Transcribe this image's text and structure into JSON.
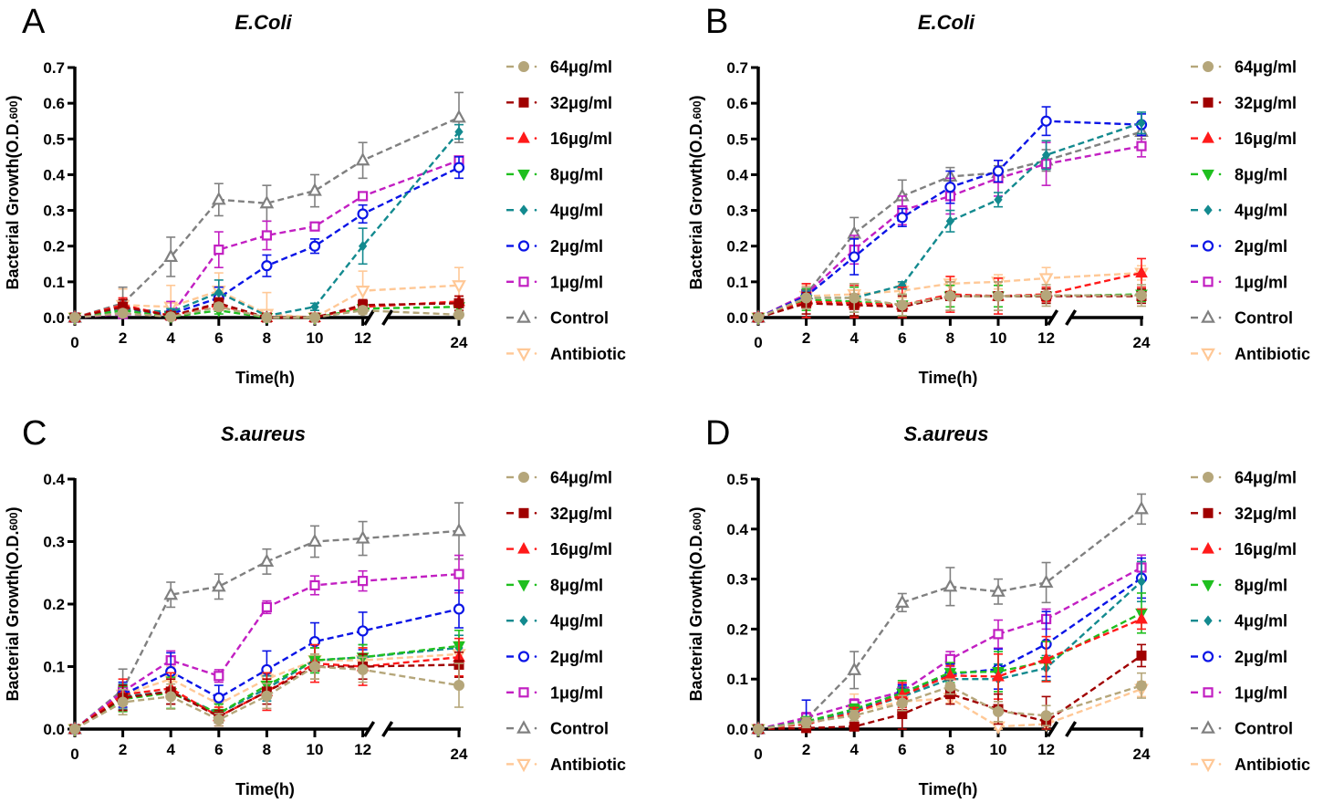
{
  "figure": {
    "y_axis_label": "Bacterial Growth(O.D.",
    "y_axis_label_sub": "600",
    "y_axis_label_close": ")",
    "x_axis_label": "Time(h)"
  },
  "legend": [
    {
      "name": "64μg/ml",
      "color": "#b5a67a",
      "marker": "circle-filled"
    },
    {
      "name": "32μg/ml",
      "color": "#a00000",
      "marker": "square-filled"
    },
    {
      "name": "16μg/ml",
      "color": "#ff1a1a",
      "marker": "triangle-up-filled"
    },
    {
      "name": "8μg/ml",
      "color": "#1fbf1f",
      "marker": "triangle-down-filled"
    },
    {
      "name": "4μg/ml",
      "color": "#138a8f",
      "marker": "diamond-filled"
    },
    {
      "name": "2μg/ml",
      "color": "#0a14e6",
      "marker": "circle-open"
    },
    {
      "name": "1μg/ml",
      "color": "#c21fc2",
      "marker": "square-open"
    },
    {
      "name": "Control",
      "color": "#808080",
      "marker": "triangle-up-open"
    },
    {
      "name": "Antibiotic",
      "color": "#ffc896",
      "marker": "triangle-down-open"
    }
  ],
  "chart_data": [
    {
      "panel": "A",
      "type": "line",
      "title": "E.Coli",
      "xlabel": "Time(h)",
      "ylabel": "Bacterial Growth(O.D.600)",
      "x": [
        0,
        2,
        4,
        6,
        8,
        10,
        12,
        24
      ],
      "x_tick_labels": [
        "0",
        "2",
        "4",
        "6",
        "8",
        "10",
        "12",
        "24"
      ],
      "x_axis_break": "between 12 and 24",
      "ylim": [
        0,
        0.7
      ],
      "y_ticks": [
        "0.0",
        "0.1",
        "0.2",
        "0.3",
        "0.4",
        "0.5",
        "0.6",
        "0.7"
      ],
      "legend_position": "right",
      "series": [
        {
          "name": "64μg/ml",
          "values": [
            0,
            0.012,
            0.002,
            0.03,
            0.0,
            0.0,
            0.02,
            0.008
          ],
          "errors": [
            0,
            0.01,
            0.005,
            0.01,
            0.005,
            0.005,
            0.01,
            0.005
          ]
        },
        {
          "name": "32μg/ml",
          "values": [
            0,
            0.03,
            0.005,
            0.04,
            0.0,
            0.0,
            0.035,
            0.04
          ],
          "errors": [
            0,
            0.02,
            0.005,
            0.015,
            0.005,
            0.005,
            0.015,
            0.02
          ]
        },
        {
          "name": "16μg/ml",
          "values": [
            0,
            0.035,
            0.005,
            0.035,
            0.0,
            0.0,
            0.03,
            0.045
          ],
          "errors": [
            0,
            0.02,
            0.005,
            0.015,
            0.005,
            0.005,
            0.01,
            0.015
          ]
        },
        {
          "name": "8μg/ml",
          "values": [
            0,
            0.02,
            0.002,
            0.02,
            0.0,
            0.0,
            0.025,
            0.03
          ],
          "errors": [
            0,
            0.01,
            0.005,
            0.01,
            0.005,
            0.005,
            0.01,
            0.01
          ]
        },
        {
          "name": "4μg/ml",
          "values": [
            0,
            0.025,
            0.015,
            0.07,
            0.005,
            0.03,
            0.2,
            0.52
          ],
          "errors": [
            0,
            0.01,
            0.01,
            0.035,
            0.005,
            0.01,
            0.05,
            0.02
          ]
        },
        {
          "name": "2μg/ml",
          "values": [
            0,
            0.02,
            0.01,
            0.055,
            0.145,
            0.2,
            0.29,
            0.42
          ],
          "errors": [
            0,
            0.01,
            0.01,
            0.03,
            0.03,
            0.02,
            0.025,
            0.03
          ]
        },
        {
          "name": "1μg/ml",
          "values": [
            0,
            0.01,
            0.005,
            0.19,
            0.23,
            0.255,
            0.34,
            0.44
          ],
          "errors": [
            0,
            0.01,
            0.04,
            0.05,
            0.04,
            0.01,
            0.01,
            0.01
          ]
        },
        {
          "name": "Control",
          "values": [
            0,
            0.04,
            0.17,
            0.33,
            0.32,
            0.355,
            0.44,
            0.56
          ],
          "errors": [
            0,
            0.045,
            0.055,
            0.045,
            0.05,
            0.045,
            0.05,
            0.07
          ]
        },
        {
          "name": "Antibiotic",
          "values": [
            0,
            0.035,
            0.03,
            0.075,
            0.01,
            0.0,
            0.075,
            0.09
          ],
          "errors": [
            0,
            0.045,
            0.06,
            0.05,
            0.06,
            0.005,
            0.055,
            0.05
          ]
        }
      ]
    },
    {
      "panel": "B",
      "type": "line",
      "title": "E.Coli",
      "xlabel": "Time(h)",
      "ylabel": "Bacterial Growth(O.D.600)",
      "x": [
        0,
        2,
        4,
        6,
        8,
        10,
        12,
        24
      ],
      "x_tick_labels": [
        "0",
        "2",
        "4",
        "6",
        "8",
        "10",
        "12",
        "24"
      ],
      "x_axis_break": "between 12 and 24",
      "ylim": [
        0,
        0.7
      ],
      "y_ticks": [
        "0.0",
        "0.1",
        "0.2",
        "0.3",
        "0.4",
        "0.5",
        "0.6",
        "0.7"
      ],
      "legend_position": "right",
      "series": [
        {
          "name": "64μg/ml",
          "values": [
            0,
            0.055,
            0.055,
            0.035,
            0.06,
            0.06,
            0.062,
            0.062
          ],
          "errors": [
            0,
            0.03,
            0.04,
            0.03,
            0.04,
            0.04,
            0.03,
            0.03
          ]
        },
        {
          "name": "32μg/ml",
          "values": [
            0,
            0.04,
            0.035,
            0.03,
            0.06,
            0.06,
            0.06,
            0.06
          ],
          "errors": [
            0,
            0.03,
            0.03,
            0.03,
            0.04,
            0.04,
            0.02,
            0.02
          ]
        },
        {
          "name": "16μg/ml",
          "values": [
            0,
            0.045,
            0.04,
            0.035,
            0.065,
            0.06,
            0.065,
            0.125
          ],
          "errors": [
            0,
            0.05,
            0.05,
            0.05,
            0.05,
            0.05,
            0.02,
            0.04
          ]
        },
        {
          "name": "8μg/ml",
          "values": [
            0,
            0.05,
            0.045,
            0.035,
            0.06,
            0.06,
            0.06,
            0.065
          ],
          "errors": [
            0,
            0.03,
            0.04,
            0.03,
            0.03,
            0.03,
            0.02,
            0.02
          ]
        },
        {
          "name": "4μg/ml",
          "values": [
            0,
            0.055,
            0.055,
            0.09,
            0.27,
            0.33,
            0.455,
            0.545
          ],
          "errors": [
            0,
            0.02,
            0.04,
            0.01,
            0.03,
            0.02,
            0.04,
            0.03
          ]
        },
        {
          "name": "2μg/ml",
          "values": [
            0,
            0.06,
            0.17,
            0.28,
            0.365,
            0.41,
            0.55,
            0.54
          ],
          "errors": [
            0,
            0.02,
            0.05,
            0.025,
            0.045,
            0.03,
            0.04,
            0.03
          ]
        },
        {
          "name": "1μg/ml",
          "values": [
            0,
            0.065,
            0.19,
            0.3,
            0.34,
            0.39,
            0.43,
            0.48
          ],
          "errors": [
            0,
            0.02,
            0.04,
            0.04,
            0.05,
            0.05,
            0.06,
            0.03
          ]
        },
        {
          "name": "Control",
          "values": [
            0,
            0.065,
            0.235,
            0.34,
            0.395,
            0.405,
            0.44,
            0.52
          ],
          "errors": [
            0,
            0.03,
            0.045,
            0.045,
            0.025,
            0.02,
            0.03,
            0.02
          ]
        },
        {
          "name": "Antibiotic",
          "values": [
            0,
            0.06,
            0.065,
            0.075,
            0.095,
            0.1,
            0.11,
            0.125
          ],
          "errors": [
            0,
            0.03,
            0.03,
            0.02,
            0.02,
            0.02,
            0.03,
            0.02
          ]
        }
      ]
    },
    {
      "panel": "C",
      "type": "line",
      "title": "S.aureus",
      "xlabel": "Time(h)",
      "ylabel": "Bacterial Growth(O.D.600)",
      "x": [
        0,
        2,
        4,
        6,
        8,
        10,
        12,
        24
      ],
      "x_tick_labels": [
        "0",
        "2",
        "4",
        "6",
        "8",
        "10",
        "12",
        "24"
      ],
      "x_axis_break": "between 12 and 24",
      "ylim": [
        0,
        0.4
      ],
      "y_ticks": [
        "0.0",
        "0.1",
        "0.2",
        "0.3",
        "0.4"
      ],
      "legend_position": "right",
      "series": [
        {
          "name": "64μg/ml",
          "values": [
            0,
            0.043,
            0.052,
            0.015,
            0.053,
            0.1,
            0.095,
            0.07
          ],
          "errors": [
            0,
            0.02,
            0.02,
            0.01,
            0.02,
            0.02,
            0.02,
            0.035
          ]
        },
        {
          "name": "32μg/ml",
          "values": [
            0,
            0.05,
            0.06,
            0.02,
            0.06,
            0.1,
            0.1,
            0.103
          ],
          "errors": [
            0,
            0.02,
            0.02,
            0.01,
            0.02,
            0.02,
            0.02,
            0.02
          ]
        },
        {
          "name": "16μg/ml",
          "values": [
            0,
            0.055,
            0.065,
            0.02,
            0.06,
            0.105,
            0.1,
            0.115
          ],
          "errors": [
            0,
            0.025,
            0.025,
            0.015,
            0.03,
            0.03,
            0.03,
            0.03
          ]
        },
        {
          "name": "8μg/ml",
          "values": [
            0,
            0.048,
            0.058,
            0.025,
            0.07,
            0.11,
            0.115,
            0.133
          ],
          "errors": [
            0,
            0.02,
            0.025,
            0.015,
            0.02,
            0.02,
            0.02,
            0.025
          ]
        },
        {
          "name": "4μg/ml",
          "values": [
            0,
            0.052,
            0.06,
            0.025,
            0.065,
            0.11,
            0.115,
            0.13
          ],
          "errors": [
            0,
            0.02,
            0.02,
            0.015,
            0.02,
            0.02,
            0.02,
            0.02
          ]
        },
        {
          "name": "2μg/ml",
          "values": [
            0,
            0.055,
            0.092,
            0.05,
            0.095,
            0.14,
            0.157,
            0.192
          ],
          "errors": [
            0,
            0.02,
            0.03,
            0.02,
            0.03,
            0.03,
            0.03,
            0.03
          ]
        },
        {
          "name": "1μg/ml",
          "values": [
            0,
            0.06,
            0.11,
            0.085,
            0.195,
            0.23,
            0.237,
            0.248
          ],
          "errors": [
            0,
            0.01,
            0.015,
            0.01,
            0.01,
            0.015,
            0.016,
            0.03
          ]
        },
        {
          "name": "Control",
          "values": [
            0,
            0.063,
            0.215,
            0.228,
            0.268,
            0.3,
            0.305,
            0.317
          ],
          "errors": [
            0,
            0.033,
            0.02,
            0.02,
            0.02,
            0.025,
            0.027,
            0.045
          ]
        },
        {
          "name": "Antibiotic",
          "values": [
            0,
            0.055,
            0.08,
            0.04,
            0.08,
            0.11,
            0.11,
            0.12
          ],
          "errors": [
            0,
            0.02,
            0.02,
            0.01,
            0.02,
            0.02,
            0.02,
            0.02
          ]
        }
      ]
    },
    {
      "panel": "D",
      "type": "line",
      "title": "S.aureus",
      "xlabel": "Time(h)",
      "ylabel": "Bacterial Growth(O.D.600)",
      "x": [
        0,
        2,
        4,
        6,
        8,
        10,
        12,
        24
      ],
      "x_tick_labels": [
        "0",
        "2",
        "4",
        "6",
        "8",
        "10",
        "12",
        "24"
      ],
      "x_axis_break": "between 12 and 24",
      "ylim": [
        0,
        0.5
      ],
      "y_ticks": [
        "0.0",
        "0.1",
        "0.2",
        "0.3",
        "0.4",
        "0.5"
      ],
      "legend_position": "right",
      "series": [
        {
          "name": "64μg/ml",
          "values": [
            0,
            0.013,
            0.027,
            0.052,
            0.085,
            0.035,
            0.027,
            0.087
          ],
          "errors": [
            0,
            0.01,
            0.01,
            0.015,
            0.015,
            0.02,
            0.02,
            0.025
          ]
        },
        {
          "name": "32μg/ml",
          "values": [
            0,
            0.002,
            0.005,
            0.03,
            0.07,
            0.04,
            0.015,
            0.147
          ],
          "errors": [
            0,
            0.005,
            0.005,
            0.03,
            0.02,
            0.03,
            0.05,
            0.022
          ]
        },
        {
          "name": "16μg/ml",
          "values": [
            0,
            0.01,
            0.033,
            0.068,
            0.107,
            0.105,
            0.14,
            0.22
          ],
          "errors": [
            0,
            0.01,
            0.01,
            0.025,
            0.02,
            0.045,
            0.045,
            0.02
          ]
        },
        {
          "name": "8μg/ml",
          "values": [
            0,
            0.015,
            0.04,
            0.072,
            0.113,
            0.115,
            0.135,
            0.232
          ],
          "errors": [
            0,
            0.01,
            0.01,
            0.025,
            0.02,
            0.04,
            0.04,
            0.04
          ]
        },
        {
          "name": "4μg/ml",
          "values": [
            0,
            0.015,
            0.035,
            0.065,
            0.1,
            0.1,
            0.122,
            0.295
          ],
          "errors": [
            0,
            0.01,
            0.01,
            0.02,
            0.02,
            0.03,
            0.025,
            0.04
          ]
        },
        {
          "name": "2μg/ml",
          "values": [
            0,
            0.015,
            0.037,
            0.073,
            0.11,
            0.12,
            0.17,
            0.302
          ],
          "errors": [
            0,
            0.043,
            0.01,
            0.015,
            0.02,
            0.04,
            0.065,
            0.04
          ]
        },
        {
          "name": "1μg/ml",
          "values": [
            0,
            0.023,
            0.05,
            0.075,
            0.14,
            0.19,
            0.22,
            0.323
          ],
          "errors": [
            0,
            0.01,
            0.01,
            0.015,
            0.015,
            0.028,
            0.02,
            0.025
          ]
        },
        {
          "name": "Control",
          "values": [
            0,
            0.02,
            0.118,
            0.253,
            0.285,
            0.275,
            0.293,
            0.44
          ],
          "errors": [
            0,
            0.01,
            0.037,
            0.018,
            0.038,
            0.025,
            0.04,
            0.03
          ]
        },
        {
          "name": "Antibiotic",
          "values": [
            0,
            0.01,
            0.035,
            0.055,
            0.062,
            0.005,
            0.01,
            0.08
          ],
          "errors": [
            0,
            0.01,
            0.035,
            0.02,
            0.01,
            0.005,
            0.01,
            0.015
          ]
        }
      ]
    }
  ]
}
